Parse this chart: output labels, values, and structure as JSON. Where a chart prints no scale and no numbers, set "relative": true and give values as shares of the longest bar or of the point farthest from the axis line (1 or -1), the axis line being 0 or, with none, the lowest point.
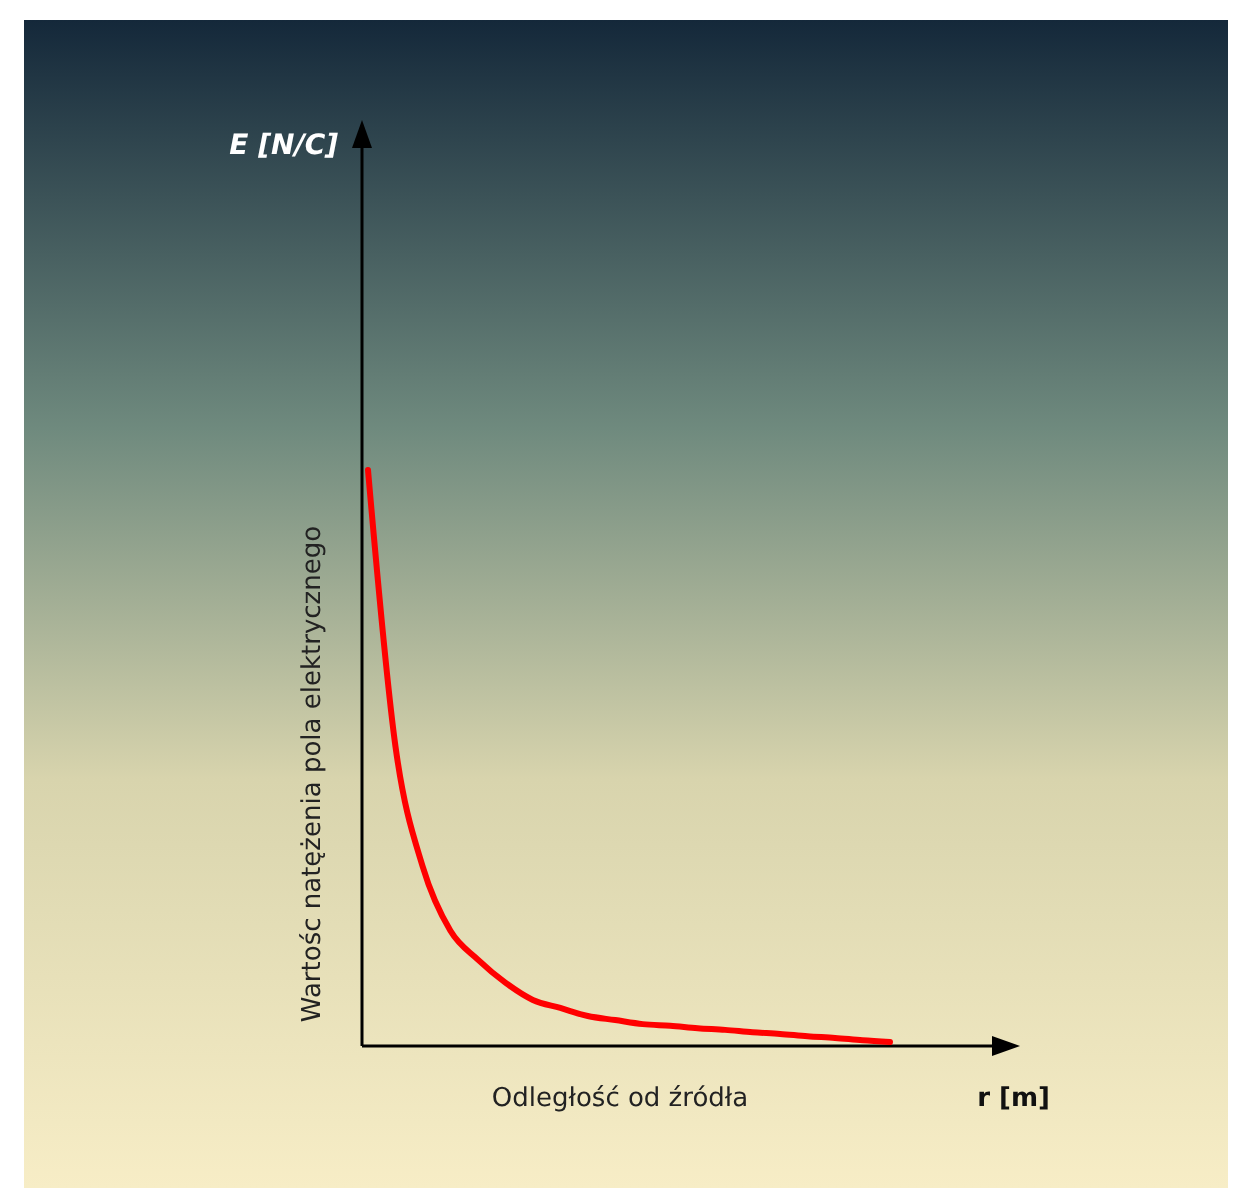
{
  "chart_data": {
    "type": "line",
    "relative": true,
    "xlabel": "Odległość od źródła",
    "ylabel": "Wartośc natężenia pola elektrycznego",
    "annotations": [
      "E [N/C]",
      "r [m]"
    ],
    "categories": [
      null,
      null,
      null,
      null,
      null,
      null,
      null,
      null,
      null,
      null,
      null,
      null,
      null,
      null,
      null,
      null,
      null,
      null,
      null,
      null
    ],
    "series": [
      {
        "color": "#ff0000",
        "values": [
          1,
          0.52,
          0.31,
          0.2,
          0.15,
          0.11,
          0.08,
          0.066,
          0.052,
          0.045,
          0.038,
          0.035,
          0.031,
          0.028,
          0.024,
          0.021,
          0.017,
          0.014,
          0.01,
          0.007
        ]
      }
    ],
    "grid": false,
    "marker": "none",
    "line_style": "solid"
  }
}
